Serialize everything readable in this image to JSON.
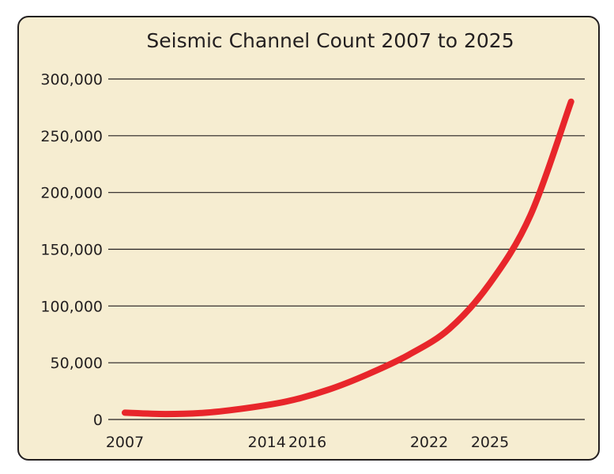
{
  "chart_data": {
    "type": "line",
    "title": "Seismic Channel Count 2007 to 2025",
    "xlabel": "",
    "ylabel": "",
    "x_tick_labels": [
      "2007",
      "2014",
      "2016",
      "2022",
      "2025"
    ],
    "y_ticks": [
      0,
      50000,
      100000,
      150000,
      200000,
      250000,
      300000
    ],
    "y_tick_labels": [
      "0",
      "50,000",
      "100,000",
      "150,000",
      "200,000",
      "250,000",
      "300,000"
    ],
    "ylim": [
      0,
      300000
    ],
    "grid": "horizontal",
    "series": [
      {
        "color": "#e8262b",
        "x": [
          "2007",
          "2009",
          "2011",
          "2013",
          "2015",
          "2017",
          "2019",
          "2021",
          "2023",
          "2025",
          "2027",
          "2029"
        ],
        "values": [
          6000,
          4800,
          6000,
          10000,
          16000,
          26000,
          40000,
          57000,
          80000,
          120000,
          180000,
          280000
        ]
      }
    ]
  },
  "colors": {
    "background": "#f6edd1",
    "border": "#231f20",
    "gridline": "#231f20",
    "line": "#e8262b",
    "text": "#231f20"
  }
}
